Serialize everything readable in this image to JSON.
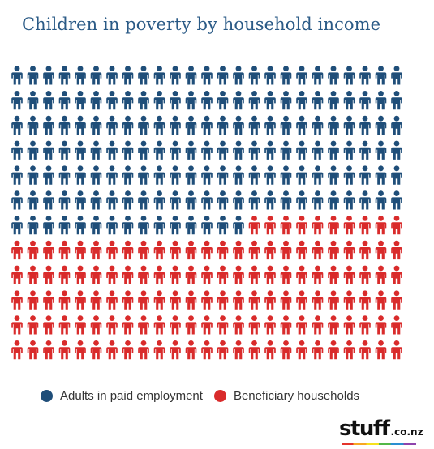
{
  "title": "Children in poverty by household income",
  "chart_data": {
    "type": "pictogram",
    "title": "Children in poverty by household income",
    "columns": 25,
    "rows": 12,
    "series": [
      {
        "name": "Adults in paid employment",
        "count": 165,
        "color": "#1f4e79"
      },
      {
        "name": "Beneficiary households",
        "count": 135,
        "color": "#d92b2b"
      }
    ],
    "legend_position": "bottom"
  },
  "legend": {
    "employment_label": "Adults in paid employment",
    "beneficiary_label": "Beneficiary households"
  },
  "logo": {
    "main": "stuff",
    "sub": ".co.nz"
  }
}
